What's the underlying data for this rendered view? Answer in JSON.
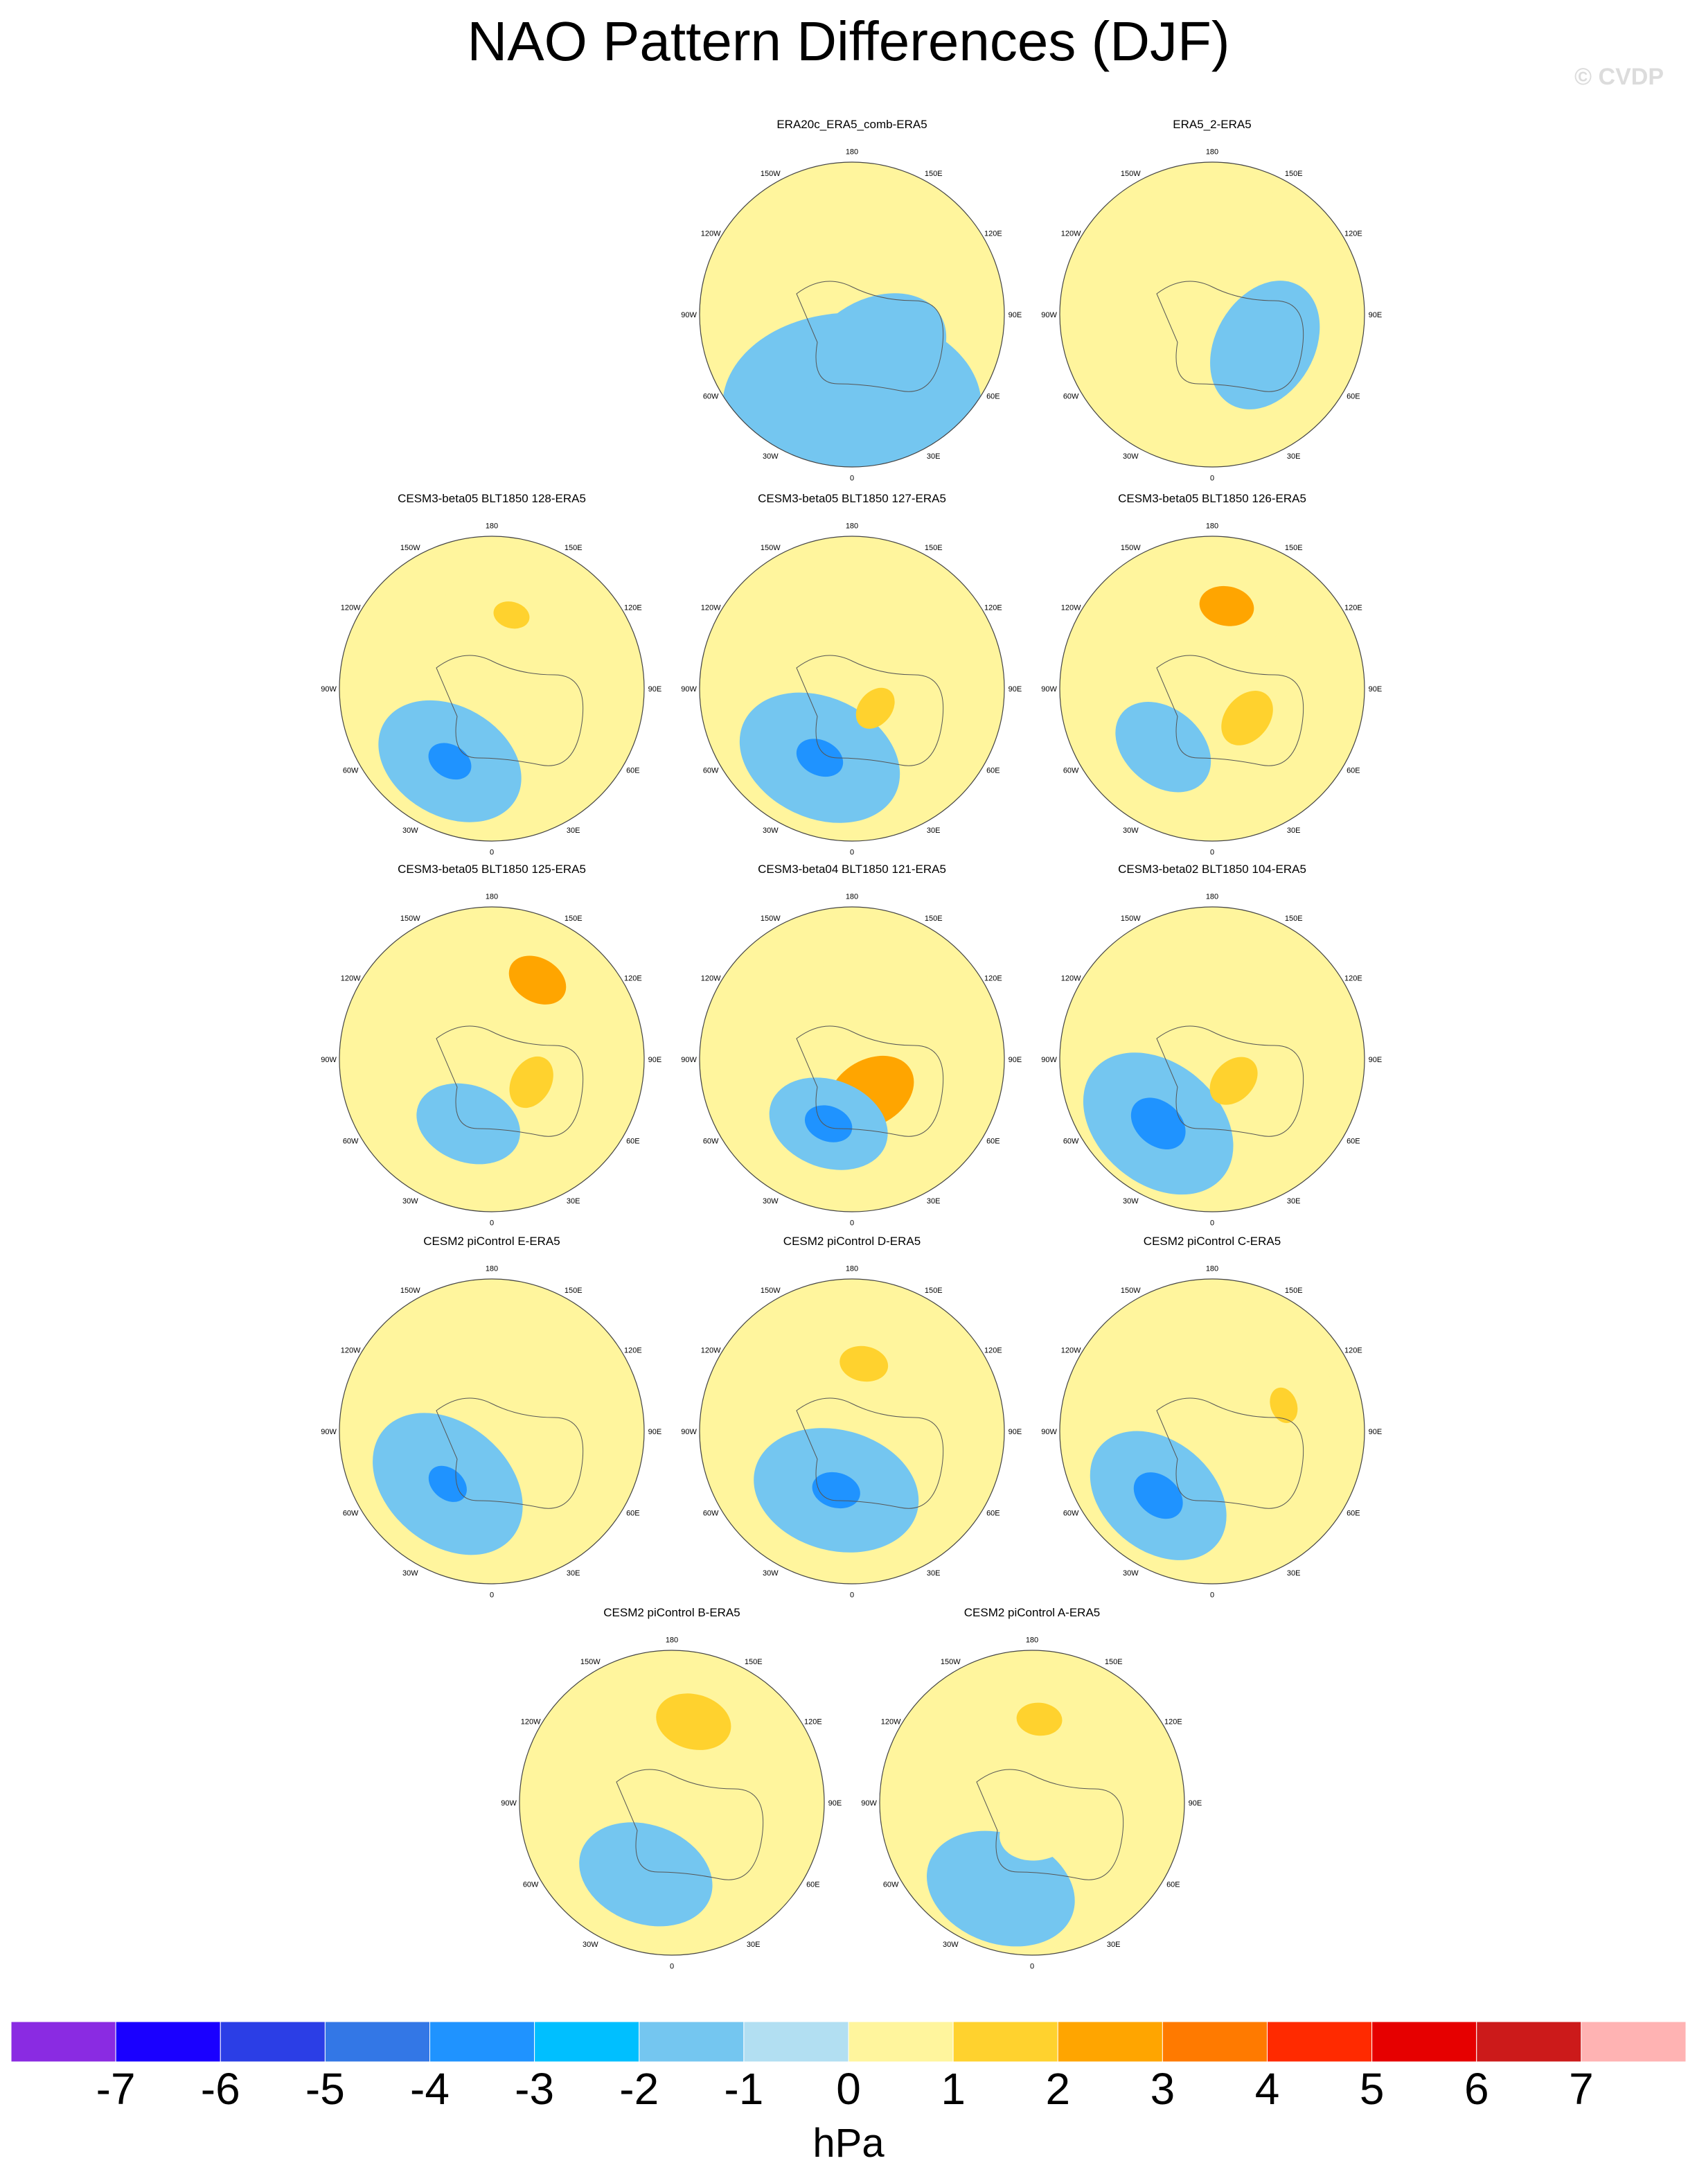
{
  "title": "NAO Pattern Differences (DJF)",
  "watermark": "© CVDP",
  "chart_data": {
    "type": "contour-map",
    "projection": "north polar stereographic",
    "variable": "sea level pressure difference",
    "unit": "hPa",
    "lon_labels": [
      "180",
      "150E",
      "120E",
      "90E",
      "60E",
      "30E",
      "0",
      "30W",
      "60W",
      "90W",
      "120W",
      "150W"
    ],
    "colorbar": {
      "levels": [
        -7,
        -6,
        -5,
        -4,
        -3,
        -2,
        -1,
        0,
        1,
        2,
        3,
        4,
        5,
        6,
        7
      ],
      "colors": [
        "#8a2be2",
        "#1a00ff",
        "#2b3ee6",
        "#3377e6",
        "#1f93ff",
        "#00bfff",
        "#74c6f0",
        "#b2dff2",
        "#fff59d",
        "#ffd22e",
        "#ffa500",
        "#ff7a00",
        "#ff2a00",
        "#e60000",
        "#cc1a1a",
        "#ffb3b3"
      ],
      "unit_label": "hPa"
    },
    "panels": [
      {
        "title": "ERA20c_ERA5_comb-ERA5",
        "features": [
          {
            "lon": 0,
            "r": 0.6,
            "level": -1,
            "size": 0.85
          },
          {
            "lon": 30,
            "r": 0.3,
            "level": -1,
            "size": 0.5
          }
        ]
      },
      {
        "title": "ERA5_2-ERA5",
        "features": [
          {
            "lon": 0,
            "r": 0.8,
            "level": 1,
            "size": 0.55
          },
          {
            "lon": 180,
            "r": 0.8,
            "level": 1,
            "size": 0.4
          },
          {
            "lon": 60,
            "r": 0.4,
            "level": -1,
            "size": 0.45
          }
        ]
      },
      {
        "title": "CESM3-beta05 BLT1850 128-ERA5",
        "features": [
          {
            "lon": -30,
            "r": 0.55,
            "level": -1,
            "size": 0.5
          },
          {
            "lon": -30,
            "r": 0.55,
            "level": -3,
            "size": 0.15
          },
          {
            "lon": 165,
            "r": 0.5,
            "level": 1,
            "size": 0.45
          },
          {
            "lon": 165,
            "r": 0.5,
            "level": 2,
            "size": 0.12
          },
          {
            "lon": 60,
            "r": 0.25,
            "level": 1,
            "size": 0.2
          }
        ]
      },
      {
        "title": "CESM3-beta05 BLT1850 127-ERA5",
        "features": [
          {
            "lon": -25,
            "r": 0.5,
            "level": -1,
            "size": 0.55
          },
          {
            "lon": -25,
            "r": 0.5,
            "level": -3,
            "size": 0.16
          },
          {
            "lon": 50,
            "r": 0.2,
            "level": 2,
            "size": 0.15
          },
          {
            "lon": 170,
            "r": 0.65,
            "level": 1,
            "size": 0.4
          }
        ]
      },
      {
        "title": "CESM3-beta05 BLT1850 126-ERA5",
        "features": [
          {
            "lon": 170,
            "r": 0.55,
            "level": 1,
            "size": 0.4
          },
          {
            "lon": 170,
            "r": 0.55,
            "level": 3,
            "size": 0.18
          },
          {
            "lon": 50,
            "r": 0.3,
            "level": 2,
            "size": 0.2
          },
          {
            "lon": -40,
            "r": 0.5,
            "level": -1,
            "size": 0.35
          }
        ]
      },
      {
        "title": "CESM3-beta05 BLT1850 125-ERA5",
        "features": [
          {
            "lon": 150,
            "r": 0.6,
            "level": 1,
            "size": 0.45
          },
          {
            "lon": 150,
            "r": 0.6,
            "level": 3,
            "size": 0.2
          },
          {
            "lon": 60,
            "r": 0.3,
            "level": 2,
            "size": 0.18
          },
          {
            "lon": -20,
            "r": 0.45,
            "level": -1,
            "size": 0.35
          }
        ]
      },
      {
        "title": "CESM3-beta04 BLT1850 121-ERA5",
        "features": [
          {
            "lon": 30,
            "r": 0.25,
            "level": 3,
            "size": 0.3
          },
          {
            "lon": -20,
            "r": 0.45,
            "level": -1,
            "size": 0.4
          },
          {
            "lon": -20,
            "r": 0.45,
            "level": -3,
            "size": 0.16
          },
          {
            "lon": 165,
            "r": 0.6,
            "level": 1,
            "size": 0.35
          }
        ]
      },
      {
        "title": "CESM3-beta02 BLT1850 104-ERA5",
        "features": [
          {
            "lon": -40,
            "r": 0.55,
            "level": -1,
            "size": 0.55
          },
          {
            "lon": -40,
            "r": 0.55,
            "level": -3,
            "size": 0.2
          },
          {
            "lon": 45,
            "r": 0.2,
            "level": 2,
            "size": 0.18
          },
          {
            "lon": 180,
            "r": 0.6,
            "level": 1,
            "size": 0.3
          }
        ]
      },
      {
        "title": "CESM2 piControl E-ERA5",
        "features": [
          {
            "lon": -40,
            "r": 0.45,
            "level": -1,
            "size": 0.55
          },
          {
            "lon": -40,
            "r": 0.45,
            "level": -3,
            "size": 0.14
          },
          {
            "lon": 170,
            "r": 0.7,
            "level": 1,
            "size": 0.4
          }
        ]
      },
      {
        "title": "CESM2 piControl D-ERA5",
        "features": [
          {
            "lon": -15,
            "r": 0.4,
            "level": -1,
            "size": 0.55
          },
          {
            "lon": -15,
            "r": 0.4,
            "level": -3,
            "size": 0.16
          },
          {
            "lon": 170,
            "r": 0.45,
            "level": 2,
            "size": 0.16
          }
        ]
      },
      {
        "title": "CESM2 piControl C-ERA5",
        "features": [
          {
            "lon": -40,
            "r": 0.55,
            "level": -1,
            "size": 0.5
          },
          {
            "lon": -40,
            "r": 0.55,
            "level": -3,
            "size": 0.18
          },
          {
            "lon": 120,
            "r": 0.6,
            "level": 1,
            "size": 0.35
          },
          {
            "lon": 110,
            "r": 0.5,
            "level": 2,
            "size": 0.12
          }
        ]
      },
      {
        "title": "CESM2 piControl B-ERA5",
        "features": [
          {
            "lon": 165,
            "r": 0.55,
            "level": 1,
            "size": 0.45
          },
          {
            "lon": 165,
            "r": 0.55,
            "level": 2,
            "size": 0.25
          },
          {
            "lon": -20,
            "r": 0.5,
            "level": -1,
            "size": 0.45
          }
        ]
      },
      {
        "title": "CESM2 piControl A-ERA5",
        "features": [
          {
            "lon": 175,
            "r": 0.55,
            "level": 1,
            "size": 0.3
          },
          {
            "lon": 175,
            "r": 0.55,
            "level": 2,
            "size": 0.15
          },
          {
            "lon": -20,
            "r": 0.6,
            "level": -1,
            "size": 0.5
          },
          {
            "lon": 10,
            "r": 0.2,
            "level": 1,
            "size": 0.25
          }
        ]
      }
    ]
  }
}
